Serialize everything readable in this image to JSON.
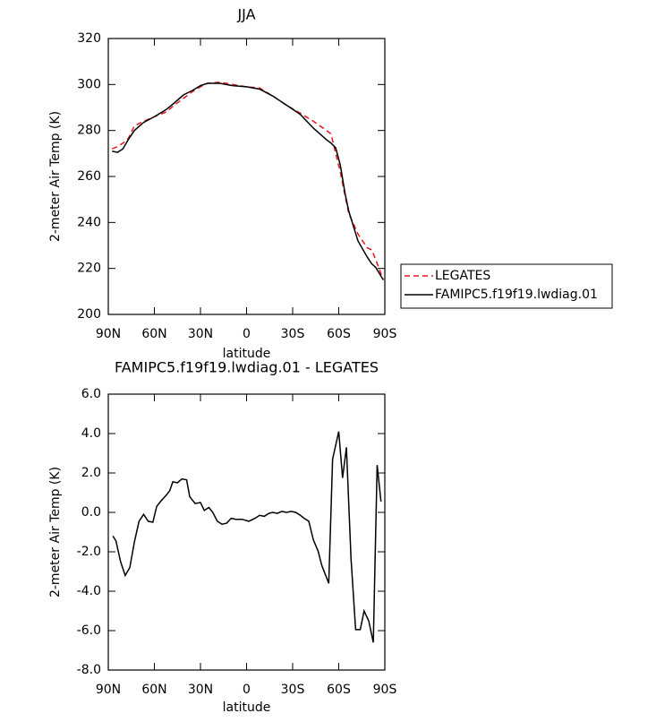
{
  "chart_data": [
    {
      "type": "line",
      "title": "JJA",
      "x_label": "latitude",
      "y_label": "2-meter Air Temp (K)",
      "x": [
        87.5,
        84,
        80.5,
        77,
        73,
        67,
        60,
        52.5,
        47,
        41,
        35,
        30,
        25.5,
        17.5,
        9,
        0,
        -8.5,
        -17,
        -26,
        -35,
        -43.5,
        -52,
        -55,
        -58,
        -61,
        -64,
        -66.5,
        -72.5,
        -78.5,
        -81.5,
        -84,
        -89
      ],
      "series": [
        {
          "name": "LEGATES",
          "color": "#e8141c",
          "linestyle": "dashed",
          "values": [
            272,
            273,
            274.5,
            276.5,
            282,
            284,
            286,
            288,
            291,
            294,
            297,
            299,
            300.5,
            301,
            300,
            299,
            298.5,
            295,
            291,
            287.5,
            284,
            280,
            278.5,
            270,
            262,
            252,
            244,
            235,
            229,
            228,
            224,
            215
          ]
        },
        {
          "name": "FAMIPC5.f19f19.lwdiag.01",
          "color": "#000000",
          "linestyle": "solid",
          "values": [
            271,
            270.5,
            272,
            276,
            280,
            283.5,
            286,
            289,
            292,
            295.5,
            297.5,
            299.5,
            300.5,
            300.5,
            299.5,
            299,
            298,
            295,
            291,
            287,
            281,
            276,
            274.5,
            272.5,
            265,
            253,
            245,
            232,
            225,
            222,
            220.5,
            215
          ]
        }
      ],
      "xlim": [
        90,
        -90
      ],
      "xticks": [
        {
          "value": 90,
          "label": "90N"
        },
        {
          "value": 60,
          "label": "60N"
        },
        {
          "value": 30,
          "label": "30N"
        },
        0,
        {
          "value": -30,
          "label": "30S"
        },
        {
          "value": -60,
          "label": "60S"
        },
        {
          "value": -90,
          "label": "90S"
        }
      ],
      "ylim": [
        200,
        320
      ],
      "yticks": [
        200,
        220,
        240,
        260,
        280,
        300,
        320
      ],
      "legend": "right"
    },
    {
      "type": "line",
      "title": "FAMIPC5.f19f19.lwdiag.01 - LEGATES",
      "x_label": "latitude",
      "y_label": "2-meter Air Temp (K)",
      "x": [
        87,
        85,
        82,
        79,
        76,
        73,
        70,
        67,
        64,
        61,
        58.5,
        55.5,
        52.5,
        50,
        48,
        45,
        42,
        39,
        37,
        33.5,
        30,
        27.5,
        24.5,
        22,
        19,
        16,
        13,
        10,
        7,
        3,
        -1.5,
        -5.5,
        -8.5,
        -11.5,
        -14.5,
        -17,
        -20,
        -23,
        -26,
        -29,
        -32,
        -35,
        -37.5,
        -40.5,
        -43.5,
        -46.5,
        -49,
        -53.5,
        -56,
        -60,
        -62.5,
        -65,
        -68,
        -71,
        -74,
        -76.5,
        -79.5,
        -82.5,
        -85,
        -87.5
      ],
      "series": [
        {
          "color": "#000000",
          "linestyle": "solid",
          "values": [
            -1.2,
            -1.45,
            -2.5,
            -3.2,
            -2.8,
            -1.5,
            -0.45,
            -0.1,
            -0.45,
            -0.5,
            0.3,
            0.6,
            0.85,
            1.1,
            1.55,
            1.5,
            1.7,
            1.65,
            0.8,
            0.45,
            0.5,
            0.1,
            0.25,
            0,
            -0.45,
            -0.6,
            -0.55,
            -0.3,
            -0.35,
            -0.35,
            -0.45,
            -0.3,
            -0.15,
            -0.2,
            -0.05,
            0,
            -0.05,
            0.05,
            0,
            0.05,
            0,
            -0.15,
            -0.3,
            -0.45,
            -1.4,
            -1.95,
            -2.7,
            -3.6,
            2.7,
            4.1,
            1.75,
            3.3,
            -2.35,
            -5.95,
            -5.95,
            -5.0,
            -5.5,
            -6.6,
            2.4,
            0.55
          ]
        }
      ],
      "xlim": [
        90,
        -90
      ],
      "xticks": [
        {
          "value": 90,
          "label": "90N"
        },
        {
          "value": 60,
          "label": "60N"
        },
        {
          "value": 30,
          "label": "30N"
        },
        0,
        {
          "value": -30,
          "label": "30S"
        },
        {
          "value": -60,
          "label": "60S"
        },
        {
          "value": -90,
          "label": "90S"
        }
      ],
      "ylim": [
        -8,
        6
      ],
      "yticks": [
        {
          "value": -8,
          "label": "-8.0"
        },
        {
          "value": -6,
          "label": "-6.0"
        },
        {
          "value": -4,
          "label": "-4.0"
        },
        {
          "value": -2,
          "label": "-2.0"
        },
        {
          "value": 0,
          "label": "0.0"
        },
        {
          "value": 2,
          "label": "2.0"
        },
        {
          "value": 4,
          "label": "4.0"
        },
        {
          "value": 6,
          "label": "6.0"
        }
      ]
    }
  ]
}
